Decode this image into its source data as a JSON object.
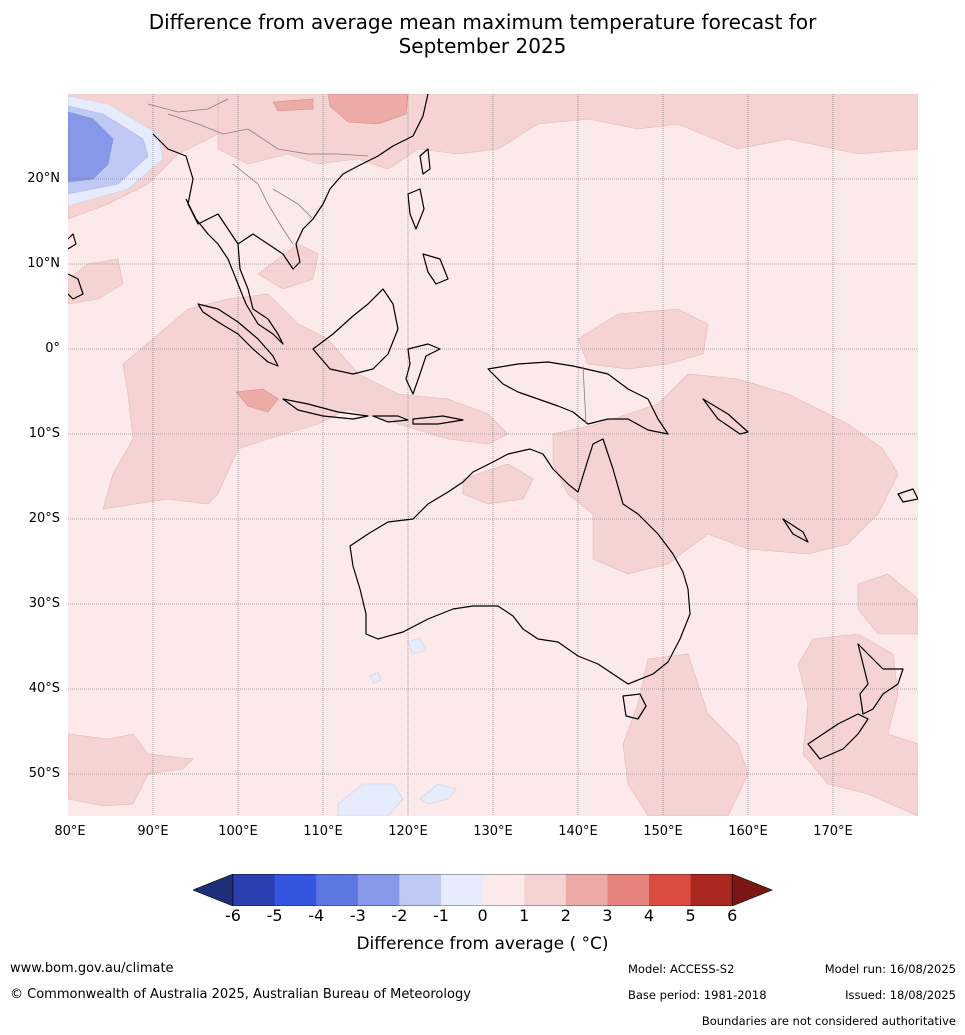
{
  "title_line1": "Difference from average mean maximum temperature forecast for",
  "title_line2": "September 2025",
  "map": {
    "lon_range": [
      80,
      180
    ],
    "lat_range": [
      -55,
      30
    ],
    "lat_labels": [
      "20°N",
      "10°N",
      "0°",
      "10°S",
      "20°S",
      "30°S",
      "40°S",
      "50°S"
    ],
    "lon_labels": [
      "80°E",
      "90°E",
      "100°E",
      "110°E",
      "120°E",
      "130°E",
      "140°E",
      "150°E",
      "160°E",
      "170°E"
    ],
    "grid": true
  },
  "colorbar": {
    "ticks": [
      "-6",
      "-5",
      "-4",
      "-3",
      "-2",
      "-1",
      "0",
      "1",
      "2",
      "3",
      "4",
      "5",
      "6"
    ],
    "colors": [
      "#1f2e7a",
      "#2a40b0",
      "#3355e0",
      "#5c78e0",
      "#8898e8",
      "#c0c8f4",
      "#e6ecfb",
      "#fbeae9",
      "#f4d3d2",
      "#ecaba7",
      "#e5847e",
      "#db4c40",
      "#a9281f",
      "#7a1712"
    ],
    "label": "Difference from average ( °C)"
  },
  "footer": {
    "website": "www.bom.gov.au/climate",
    "copyright": "© Commonwealth of Australia 2025, Australian Bureau of Meteorology",
    "model": "Model: ACCESS-S2",
    "base_period": "Base period: 1981-2018",
    "model_run": "Model run: 16/08/2025",
    "issued": "Issued: 18/08/2025",
    "disclaimer": "Boundaries are not considered authoritative"
  }
}
